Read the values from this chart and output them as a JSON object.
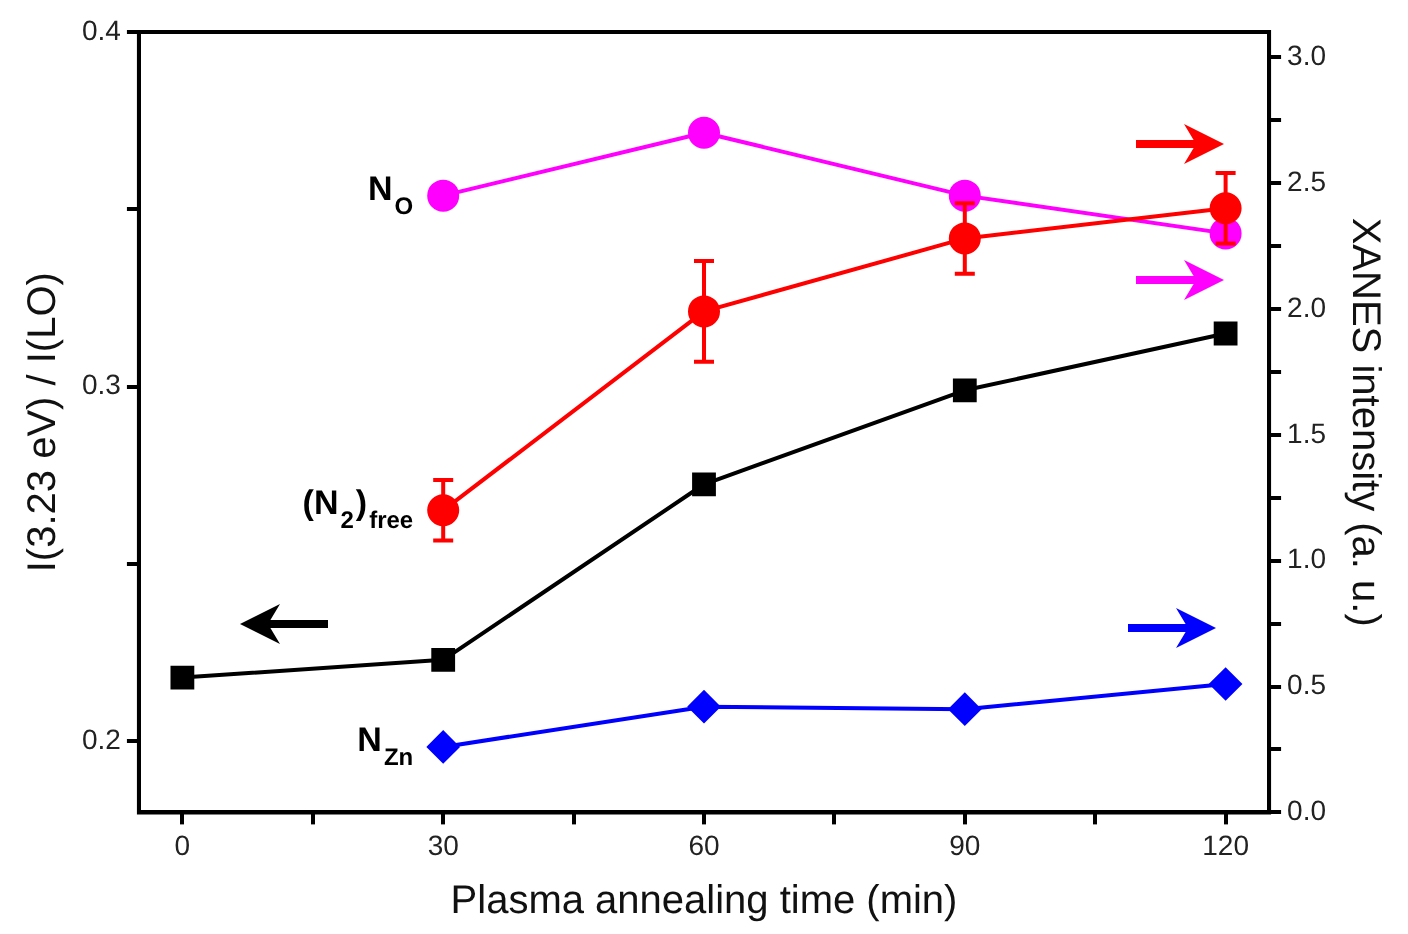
{
  "chart_data": {
    "type": "line",
    "xlabel": "Plasma annealing time (min)",
    "ylabel": "I(3.23 eV) / I(LO)",
    "y2label": "XANES intensity (a. u.)",
    "x": [
      0,
      30,
      60,
      90,
      120
    ],
    "xlim": [
      -5,
      125
    ],
    "xticks": [
      0,
      {
        "value": 15,
        "label": null
      },
      30,
      {
        "value": 45,
        "label": null
      },
      60,
      {
        "value": 75,
        "label": null
      },
      90,
      {
        "value": 105,
        "label": null
      },
      120
    ],
    "ylim": [
      0.18,
      0.4
    ],
    "yticks": [
      0.2,
      {
        "value": 0.25,
        "label": null
      },
      0.3,
      {
        "value": 0.35,
        "label": null
      },
      0.4
    ],
    "y2lim": [
      0,
      3.1
    ],
    "y2ticks": [
      {
        "value": 0,
        "label": "0.0"
      },
      {
        "value": 0.25,
        "label": null
      },
      0.5,
      {
        "value": 0.75,
        "label": null
      },
      {
        "value": 1,
        "label": "1.0"
      },
      {
        "value": 1.25,
        "label": null
      },
      1.5,
      {
        "value": 1.75,
        "label": null
      },
      {
        "value": 2,
        "label": "2.0"
      },
      {
        "value": 2.25,
        "label": null
      },
      2.5,
      {
        "value": 2.75,
        "label": null
      },
      {
        "value": 3,
        "label": "3.0"
      }
    ],
    "grid": false,
    "legend": false,
    "line_style": "solid",
    "series": [
      {
        "color": "#000000",
        "marker": "square",
        "values": [
          0.218,
          0.223,
          0.2725,
          0.299,
          0.315
        ]
      },
      {
        "name": "(N$_{2}$)$_{free}$",
        "color": "#ff0000",
        "marker": "circle",
        "axis": "y2",
        "values": [
          null,
          1.2,
          1.99,
          2.28,
          2.4
        ],
        "errors": [
          null,
          0.12,
          0.2,
          0.14,
          0.14
        ]
      },
      {
        "name": "N$_{O}$",
        "color": "#ff00ff",
        "marker": "circle",
        "axis": "y2",
        "values": [
          null,
          2.45,
          2.7,
          2.45,
          2.3
        ]
      },
      {
        "name": "N$_{Zn}$",
        "color": "#0000ff",
        "marker": "diamond",
        "axis": "y2",
        "values": [
          null,
          0.26,
          0.42,
          0.41,
          0.51
        ]
      }
    ]
  }
}
